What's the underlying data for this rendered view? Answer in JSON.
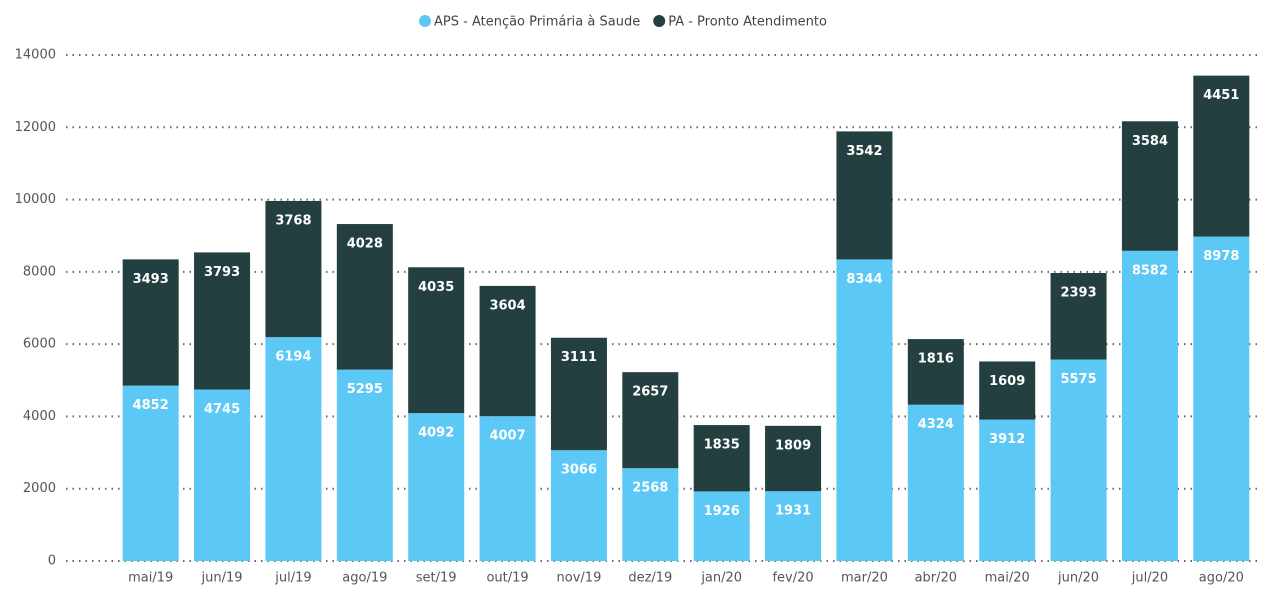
{
  "chart_data": {
    "type": "stacked_bar",
    "categories": [
      "mai/19",
      "jun/19",
      "jul/19",
      "ago/19",
      "set/19",
      "out/19",
      "nov/19",
      "dez/19",
      "jan/20",
      "fev/20",
      "mar/20",
      "abr/20",
      "mai/20",
      "jun/20",
      "jul/20",
      "ago/20"
    ],
    "series": [
      {
        "name": "APS - Atenção Primária à Saude",
        "color": "#5bc8f5",
        "values": [
          4852,
          4745,
          6194,
          5295,
          4092,
          4007,
          3066,
          2568,
          1926,
          1931,
          8344,
          4324,
          3912,
          5575,
          8582,
          8978
        ]
      },
      {
        "name": "PA - Pronto Atendimento",
        "color": "#233f40",
        "values": [
          3493,
          3793,
          3768,
          4028,
          4035,
          3604,
          3111,
          2657,
          1835,
          1809,
          3542,
          1816,
          1609,
          2393,
          3584,
          4451
        ]
      }
    ],
    "ylim": [
      0,
      14000
    ],
    "yticks": [
      0,
      2000,
      4000,
      6000,
      8000,
      10000,
      12000,
      14000
    ],
    "grid": true,
    "legend": "top"
  }
}
